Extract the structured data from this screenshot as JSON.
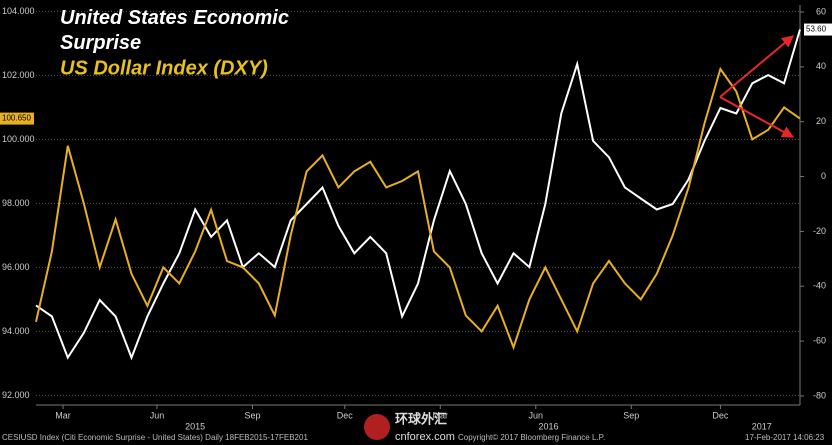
{
  "chart_data": {
    "type": "line",
    "x": [
      0,
      0.5,
      1,
      1.5,
      2,
      2.5,
      3,
      3.5,
      4,
      4.5,
      5,
      5.5,
      6,
      6.5,
      7,
      7.5,
      8,
      8.5,
      9,
      9.5,
      10,
      10.5,
      11,
      11.5,
      12,
      12.5,
      13,
      13.5,
      14,
      14.5,
      15,
      15.5,
      16,
      16.5,
      17,
      17.5,
      18,
      18.5,
      19,
      19.5,
      20,
      20.5,
      21,
      21.5,
      22,
      22.5,
      23,
      23.5,
      24
    ],
    "xlim": [
      0,
      24
    ],
    "xticks": [
      {
        "value": 0.85,
        "label": "Mar"
      },
      {
        "value": 3.8,
        "label": "Jun"
      },
      {
        "value": 6.8,
        "label": "Sep"
      },
      {
        "value": 9.7,
        "label": "Dec"
      },
      {
        "value": 12.7,
        "label": "Mar"
      },
      {
        "value": 15.7,
        "label": "Jun"
      },
      {
        "value": 18.7,
        "label": "Sep"
      },
      {
        "value": 21.5,
        "label": "Dec"
      }
    ],
    "xgroups": [
      {
        "value": 5,
        "label": "2015"
      },
      {
        "value": 16.1,
        "label": "2016"
      },
      {
        "value": 22.8,
        "label": "2017"
      }
    ],
    "ylim": [
      91.7,
      104.2
    ],
    "yticks": [
      {
        "value": 92,
        "label": "92.000"
      },
      {
        "value": 94,
        "label": "94.000"
      },
      {
        "value": 96,
        "label": "96.000"
      },
      {
        "value": 98,
        "label": "98.000"
      },
      {
        "value": 100,
        "label": "100.000"
      },
      {
        "value": 102,
        "label": "102.000"
      },
      {
        "value": 104,
        "label": "104.000"
      }
    ],
    "y2lim": [
      -83.3,
      62.55
    ],
    "y2ticks": [
      -80,
      -60,
      -40,
      -20,
      0,
      20,
      40,
      60
    ],
    "grid": true,
    "series": [
      {
        "name": "United States Economic Surprise",
        "color": "#ffffff",
        "axis": "y2",
        "last_label": "53.60",
        "values": [
          -47,
          -51,
          -66,
          -57,
          -45,
          -51,
          -66,
          -51,
          -39,
          -28,
          -12,
          -22,
          -16,
          -33,
          -28,
          -33,
          -16,
          -10,
          -4,
          -18,
          -28,
          -22,
          -28,
          -51,
          -39,
          -16,
          2,
          -10,
          -28,
          -39,
          -28,
          -33,
          -10,
          23,
          41,
          13,
          7,
          -4,
          -8,
          -12,
          -10,
          -1,
          13,
          25,
          23,
          34,
          37,
          34,
          53.6
        ]
      },
      {
        "name": "US Dollar Index (DXY)",
        "color": "#e8b020",
        "axis": "y",
        "last_label": "100.650",
        "values": [
          94.3,
          96.5,
          99.8,
          98.0,
          96.0,
          97.5,
          95.8,
          94.8,
          96.0,
          95.5,
          96.5,
          97.8,
          96.2,
          96.0,
          95.5,
          94.5,
          97.0,
          99.0,
          99.5,
          98.5,
          99.0,
          99.3,
          98.5,
          98.7,
          99.0,
          96.5,
          96.0,
          94.5,
          94.0,
          94.8,
          93.5,
          95.0,
          96.0,
          95.0,
          94.0,
          95.5,
          96.2,
          95.5,
          95.0,
          95.8,
          97.0,
          98.5,
          100.5,
          102.2,
          101.5,
          100.0,
          100.3,
          101.0,
          100.65
        ]
      }
    ],
    "footer": [
      "CESIUSD Index (Citi Economic Surprise - United States)  Daily 18FEB2015-17FEB201",
      "Copyright© 2017 Bloomberg Finance L.P.",
      "17-Feb-2017 14:06:23"
    ],
    "watermark": [
      "环球外汇",
      "cnforex.com"
    ]
  }
}
